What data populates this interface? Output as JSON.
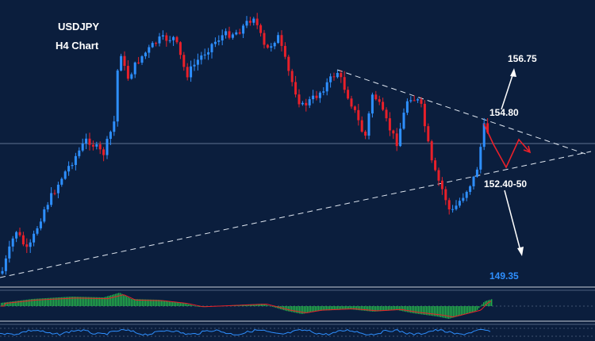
{
  "colors": {
    "background": "#0b1e3d",
    "bull_candle": "#2e8fff",
    "bear_candle": "#e8202a",
    "trendline": "#dfe6f0",
    "projection": "#e8202a",
    "arrow": "#ffffff",
    "target_low": "#2e8fff",
    "macd_bar": "#25b04a"
  },
  "chart": {
    "title_line1": "USDJPY",
    "title_line2": "H4 Chart"
  },
  "chart_data": {
    "type": "candlestick",
    "symbol": "USDJPY",
    "timeframe": "H4",
    "levels": [
      {
        "label": "156.75",
        "value": 156.75,
        "role": "upside target"
      },
      {
        "label": "154.80",
        "value": 154.8,
        "role": "triangle resistance"
      },
      {
        "label": "152.40-50",
        "value": 152.45,
        "role": "triangle support"
      },
      {
        "label": "149.35",
        "value": 149.35,
        "role": "downside target"
      }
    ],
    "annotations": [
      "symmetrical triangle",
      "upside breakout arrow",
      "downside breakdown arrow",
      "projected zig-zag path"
    ],
    "indicators": [
      "MACD histogram with signal line",
      "oscillator"
    ]
  }
}
